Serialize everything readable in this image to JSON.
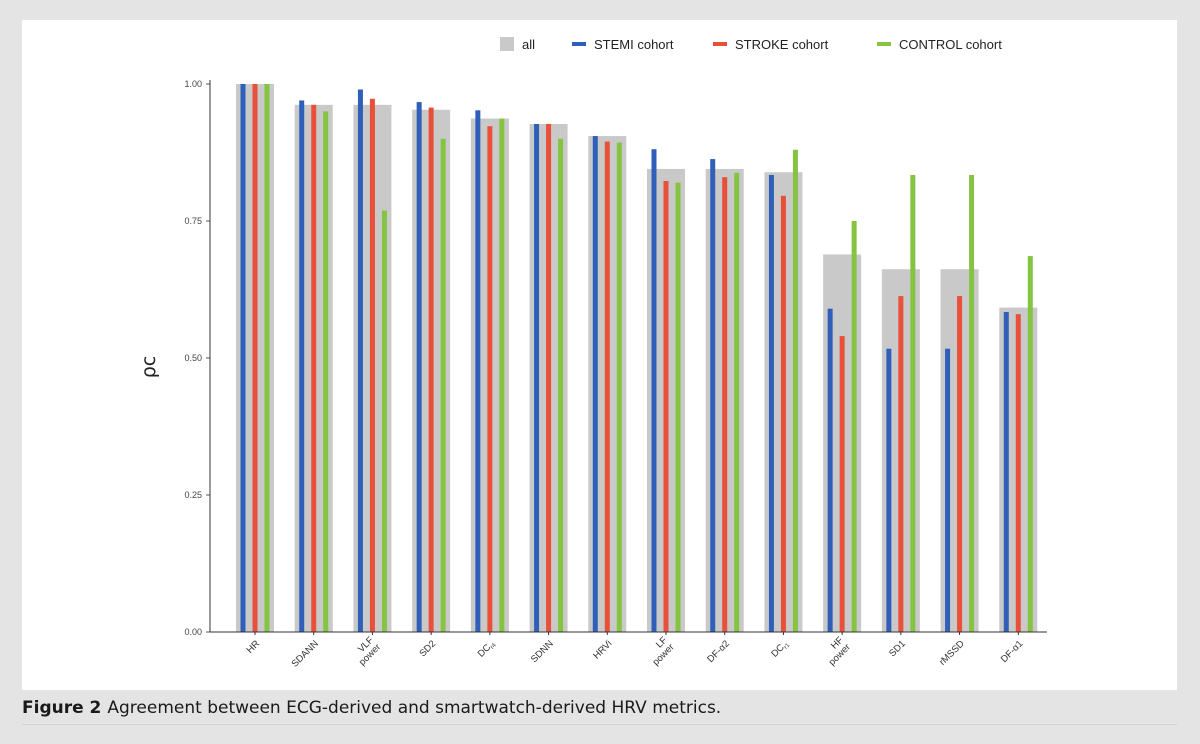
{
  "caption": {
    "label": "Figure 2",
    "text": "Agreement between ECG-derived and smartwatch-derived HRV metrics."
  },
  "chart_data": {
    "type": "bar",
    "ylabel": "ρc",
    "xlabel": "",
    "ylim": [
      0,
      1.0
    ],
    "yticks": [
      "0.00",
      "0.25",
      "0.50",
      "0.75",
      "1.00"
    ],
    "ytick_values": [
      0,
      0.25,
      0.5,
      0.75,
      1.0
    ],
    "legend_position": "top",
    "categories": [
      [
        "HR"
      ],
      [
        "SDANN"
      ],
      [
        "VLF",
        "power"
      ],
      [
        "SD2"
      ],
      [
        "DC",
        "r4"
      ],
      [
        "SDNN"
      ],
      [
        "HRVi"
      ],
      [
        "LF",
        "power"
      ],
      [
        "DF-α2"
      ],
      [
        "DC",
        "r1"
      ],
      [
        "HF",
        "power"
      ],
      [
        "SD1"
      ],
      [
        "rMSSD"
      ],
      [
        "DF-α1"
      ]
    ],
    "series": [
      {
        "name": "all",
        "color": "#c9c9c9",
        "values": [
          1.0,
          0.962,
          0.962,
          0.953,
          0.937,
          0.927,
          0.905,
          0.845,
          0.845,
          0.839,
          0.689,
          0.662,
          0.662,
          0.592
        ]
      },
      {
        "name": "STEMI cohort",
        "color": "#2f5fb8",
        "values": [
          1.0,
          0.97,
          0.99,
          0.967,
          0.952,
          0.927,
          0.905,
          0.881,
          0.863,
          0.834,
          0.59,
          0.517,
          0.517,
          0.584
        ]
      },
      {
        "name": "STROKE cohort",
        "color": "#e8503a",
        "values": [
          1.0,
          0.962,
          0.973,
          0.957,
          0.923,
          0.927,
          0.895,
          0.823,
          0.83,
          0.796,
          0.54,
          0.613,
          0.613,
          0.58
        ]
      },
      {
        "name": "CONTROL cohort",
        "color": "#84c441",
        "values": [
          1.0,
          0.95,
          0.769,
          0.9,
          0.937,
          0.9,
          0.893,
          0.82,
          0.838,
          0.88,
          0.75,
          0.834,
          0.834,
          0.686
        ]
      }
    ]
  }
}
